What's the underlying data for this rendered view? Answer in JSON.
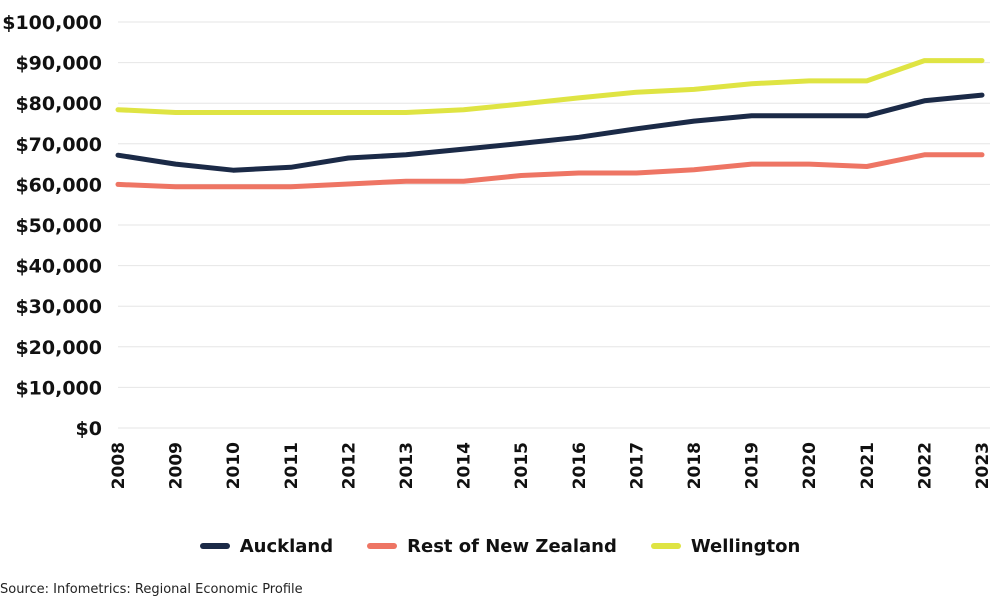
{
  "chart_data": {
    "type": "line",
    "title": "",
    "xlabel": "",
    "ylabel": "",
    "x": [
      "2008",
      "2009",
      "2010",
      "2011",
      "2012",
      "2013",
      "2014",
      "2015",
      "2016",
      "2017",
      "2018",
      "2019",
      "2020",
      "2021",
      "2022",
      "2023"
    ],
    "ylim": [
      0,
      100000
    ],
    "yticks": [
      "$0",
      "$10,000",
      "$20,000",
      "$30,000",
      "$40,000",
      "$50,000",
      "$60,000",
      "$70,000",
      "$80,000",
      "$90,000",
      "$100,000"
    ],
    "grid": true,
    "legend_position": "bottom",
    "series": [
      {
        "name": "Auckland",
        "color": "#1b2a47",
        "values": [
          67200,
          65000,
          63500,
          64200,
          66500,
          67300,
          68700,
          70100,
          71600,
          73700,
          75600,
          76900,
          76900,
          76900,
          80600,
          82000
        ]
      },
      {
        "name": "Rest of New Zealand",
        "color": "#ee7564",
        "values": [
          60000,
          59400,
          59400,
          59400,
          60100,
          60800,
          60800,
          62200,
          62800,
          62800,
          63600,
          65000,
          65000,
          64400,
          67300,
          67300
        ]
      },
      {
        "name": "Wellington",
        "color": "#dfe443",
        "values": [
          78400,
          77700,
          77700,
          77700,
          77700,
          77700,
          78400,
          79800,
          81300,
          82700,
          83400,
          84800,
          85500,
          85500,
          90500,
          90500
        ]
      }
    ]
  },
  "source": "Source: Infometrics: Regional Economic Profile"
}
